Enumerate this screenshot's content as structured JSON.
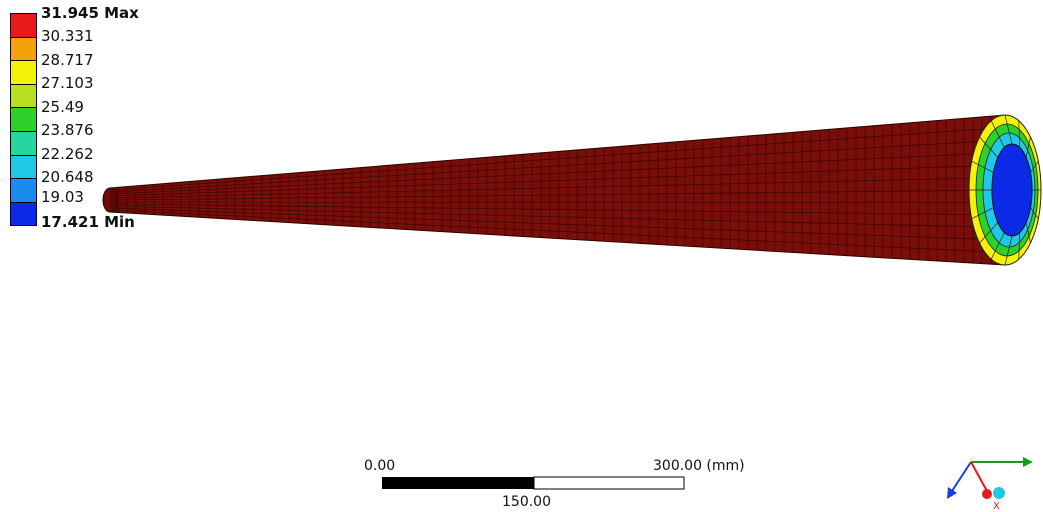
{
  "legend": {
    "max_label": "31.945 Max",
    "min_label": "17.421 Min",
    "levels": [
      "30.331",
      "28.717",
      "27.103",
      "25.49",
      "23.876",
      "22.262",
      "20.648",
      "19.03"
    ],
    "colors": [
      "#e8191a",
      "#f5a20a",
      "#f5f20a",
      "#b6e020",
      "#2ed02a",
      "#26d6a0",
      "#1ec9e6",
      "#1a8cf0",
      "#0a2ae8"
    ]
  },
  "model": {
    "outer_color": "#7a0e08",
    "mesh_color": "#3a0402",
    "face_ring_colors": [
      "#1ec9e6",
      "#2ed02a",
      "#f5f20a"
    ],
    "face_inner_color": "#0a2ae8"
  },
  "scale": {
    "left_label": "0.00",
    "right_label": "300.00 (mm)",
    "mid_label": "150.00"
  },
  "triad": {
    "x_color": "#e8191a",
    "y_color": "#1a9a1a",
    "z_color": "#1a3ae8",
    "ball_color": "#1ec9e6",
    "x_text": "X"
  }
}
